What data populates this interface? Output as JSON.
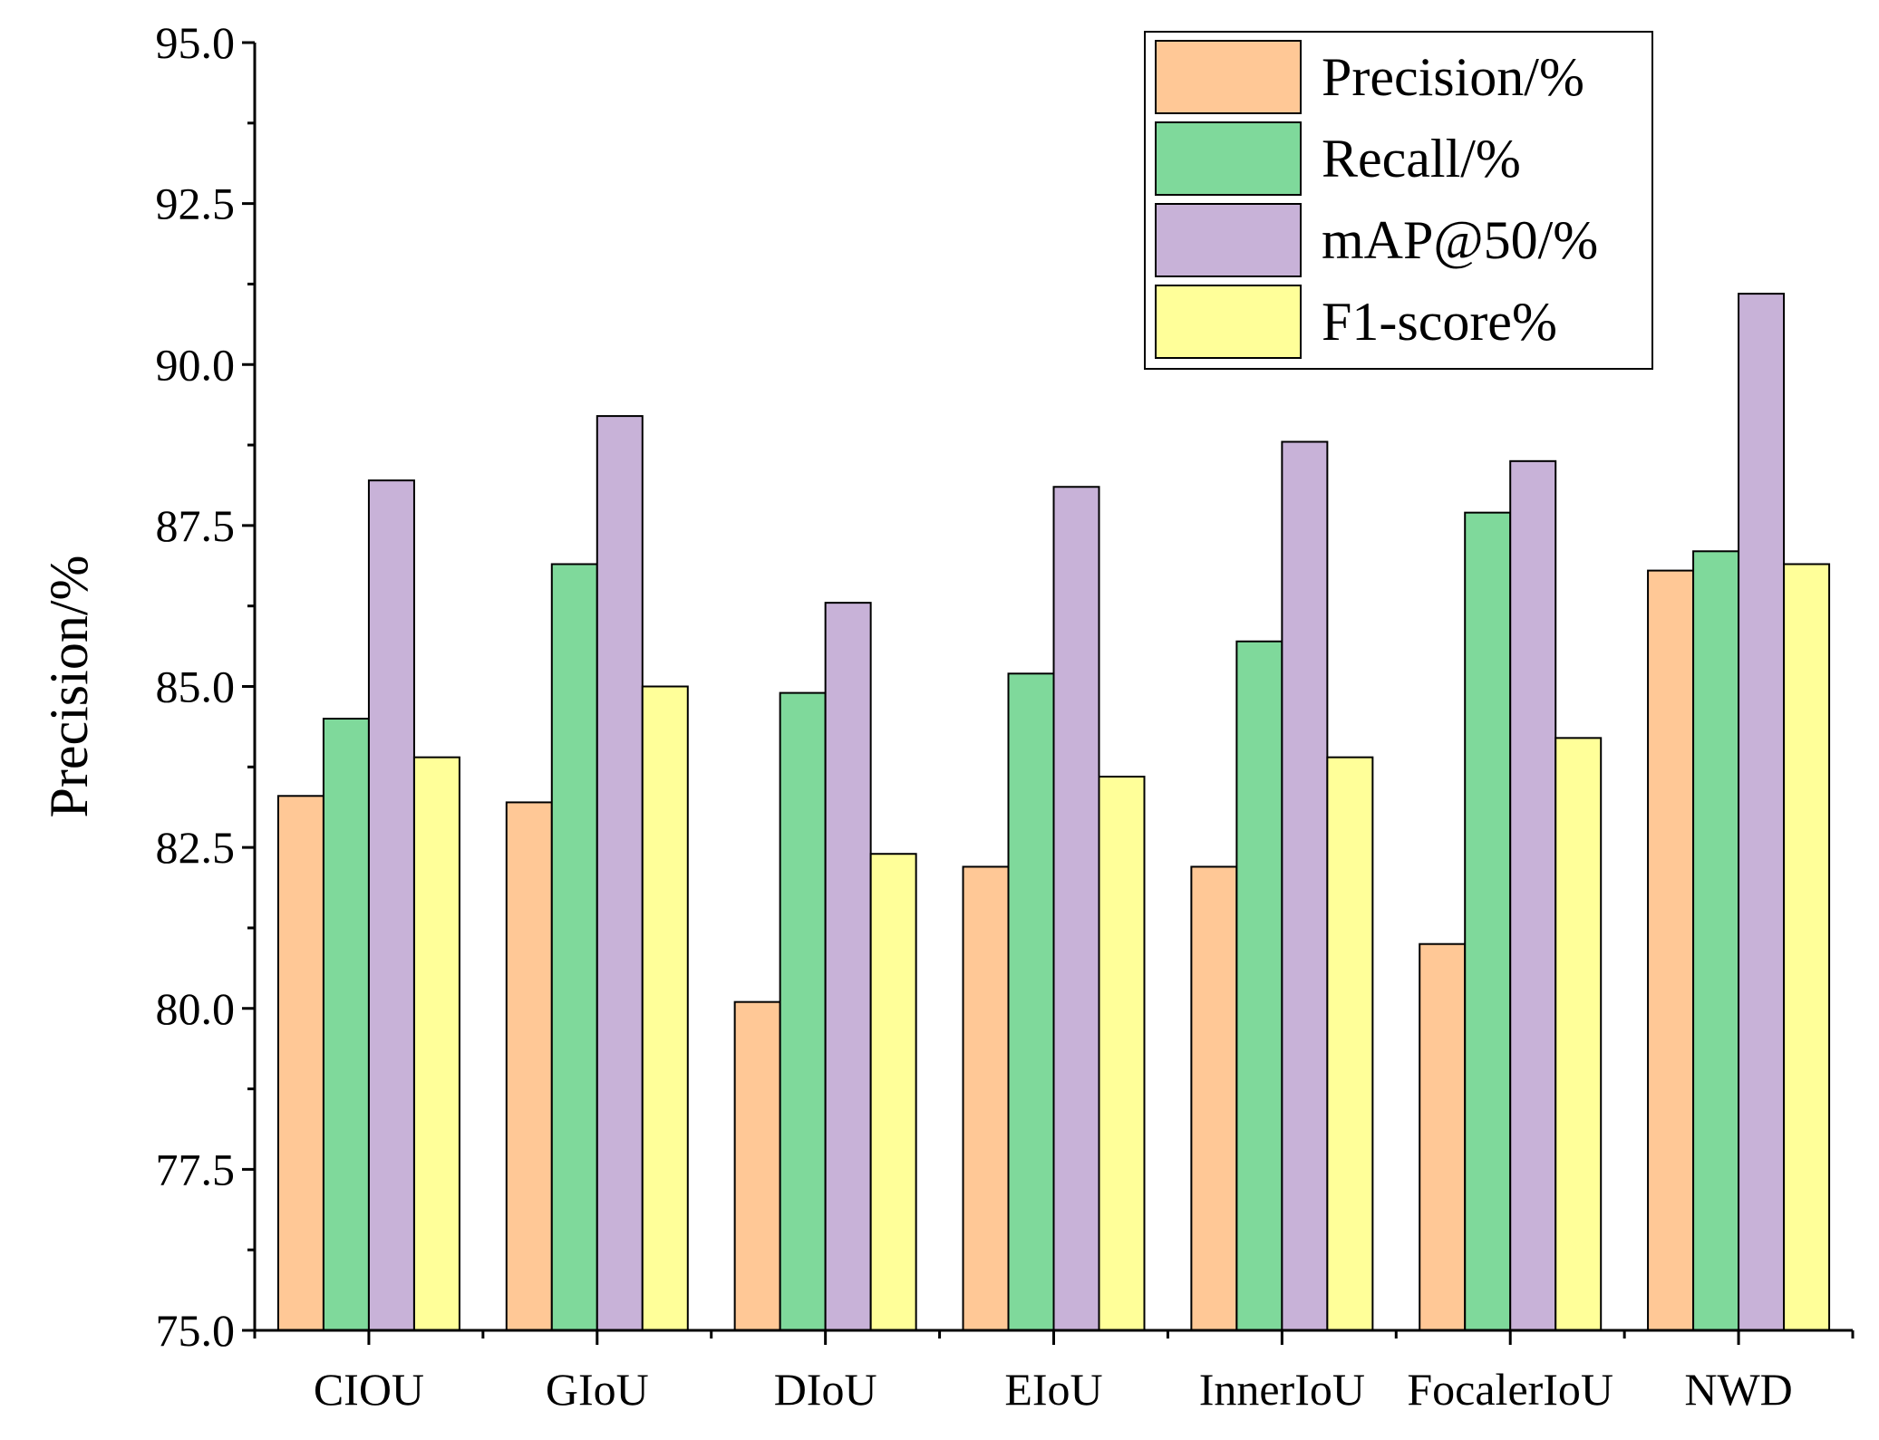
{
  "chart_data": {
    "type": "bar",
    "title": "",
    "xlabel": "",
    "ylabel": "Precision/%",
    "ylim": [
      75.0,
      95.0
    ],
    "yticks": [
      "75.0",
      "77.5",
      "80.0",
      "82.5",
      "85.0",
      "87.5",
      "90.0",
      "92.5",
      "95.0"
    ],
    "categories": [
      "CIOU",
      "GIoU",
      "DIoU",
      "EIoU",
      "InnerIoU",
      "FocalerIoU",
      "NWD"
    ],
    "series": [
      {
        "name": "Precision/%",
        "color": "#FFC896",
        "values": [
          83.3,
          83.2,
          80.1,
          82.2,
          82.2,
          81.0,
          86.8
        ]
      },
      {
        "name": "Recall/%",
        "color": "#7FD99B",
        "values": [
          84.5,
          86.9,
          84.9,
          85.2,
          85.7,
          87.7,
          87.1
        ]
      },
      {
        "name": "mAP@50/%",
        "color": "#C8B2D8",
        "values": [
          88.2,
          89.2,
          86.3,
          88.1,
          88.8,
          88.5,
          91.1
        ]
      },
      {
        "name": "F1-score%",
        "color": "#FFFF99",
        "values": [
          83.9,
          85.0,
          82.4,
          83.6,
          83.9,
          84.2,
          86.9
        ]
      }
    ],
    "legend_position": "top-right",
    "grid": false
  }
}
